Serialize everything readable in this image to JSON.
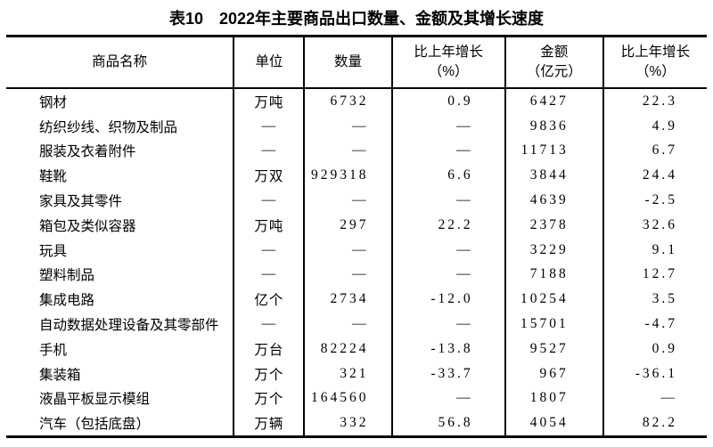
{
  "table": {
    "title": "表10　2022年主要商品出口数量、金额及其增长速度",
    "columns": [
      {
        "label": "商品名称",
        "sub": ""
      },
      {
        "label": "单位",
        "sub": ""
      },
      {
        "label": "数量",
        "sub": ""
      },
      {
        "label": "比上年增长",
        "sub": "（%）"
      },
      {
        "label": "金额",
        "sub": "（亿元）"
      },
      {
        "label": "比上年增长",
        "sub": "（%）"
      }
    ],
    "rows": [
      {
        "name": "钢材",
        "unit": "万吨",
        "quantity": "6732",
        "quantity_growth": "0.9",
        "amount": "6427",
        "amount_growth": "22.3"
      },
      {
        "name": "纺织纱线、织物及制品",
        "unit": "—",
        "quantity": "—",
        "quantity_growth": "—",
        "amount": "9836",
        "amount_growth": "4.9"
      },
      {
        "name": "服装及衣着附件",
        "unit": "—",
        "quantity": "—",
        "quantity_growth": "—",
        "amount": "11713",
        "amount_growth": "6.7"
      },
      {
        "name": "鞋靴",
        "unit": "万双",
        "quantity": "929318",
        "quantity_growth": "6.6",
        "amount": "3844",
        "amount_growth": "24.4"
      },
      {
        "name": "家具及其零件",
        "unit": "—",
        "quantity": "—",
        "quantity_growth": "—",
        "amount": "4639",
        "amount_growth": "-2.5"
      },
      {
        "name": "箱包及类似容器",
        "unit": "万吨",
        "quantity": "297",
        "quantity_growth": "22.2",
        "amount": "2378",
        "amount_growth": "32.6"
      },
      {
        "name": "玩具",
        "unit": "—",
        "quantity": "—",
        "quantity_growth": "—",
        "amount": "3229",
        "amount_growth": "9.1"
      },
      {
        "name": "塑料制品",
        "unit": "—",
        "quantity": "—",
        "quantity_growth": "—",
        "amount": "7188",
        "amount_growth": "12.7"
      },
      {
        "name": "集成电路",
        "unit": "亿个",
        "quantity": "2734",
        "quantity_growth": "-12.0",
        "amount": "10254",
        "amount_growth": "3.5"
      },
      {
        "name": "自动数据处理设备及其零部件",
        "unit": "—",
        "quantity": "—",
        "quantity_growth": "—",
        "amount": "15701",
        "amount_growth": "-4.7"
      },
      {
        "name": "手机",
        "unit": "万台",
        "quantity": "82224",
        "quantity_growth": "-13.8",
        "amount": "9527",
        "amount_growth": "0.9"
      },
      {
        "name": "集装箱",
        "unit": "万个",
        "quantity": "321",
        "quantity_growth": "-33.7",
        "amount": "967",
        "amount_growth": "-36.1"
      },
      {
        "name": "液晶平板显示模组",
        "unit": "万个",
        "quantity": "164560",
        "quantity_growth": "—",
        "amount": "1807",
        "amount_growth": "—"
      },
      {
        "name": "汽车（包括底盘）",
        "unit": "万辆",
        "quantity": "332",
        "quantity_growth": "56.8",
        "amount": "4054",
        "amount_growth": "82.2"
      }
    ]
  }
}
